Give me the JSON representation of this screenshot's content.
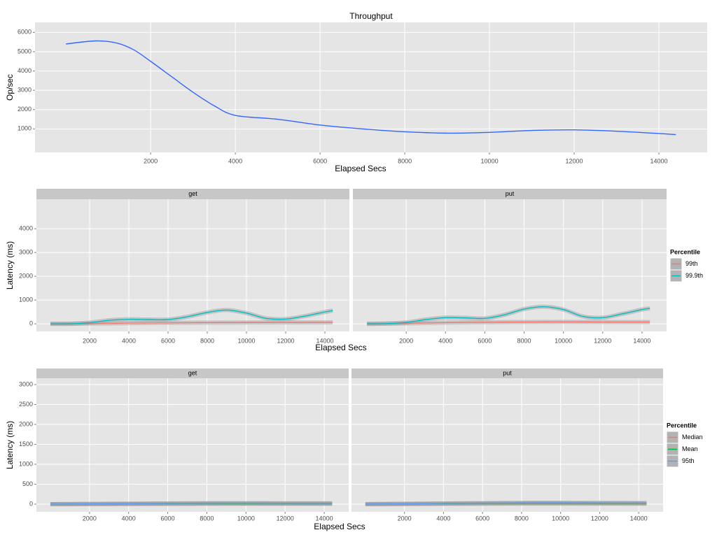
{
  "chart_data": [
    {
      "type": "line",
      "title": "Throughput",
      "x_label": "Elapsed Secs",
      "y_label": "Op/sec",
      "color": "#3366ff",
      "x": [
        0,
        700,
        1200,
        1600,
        2000,
        2500,
        3000,
        3500,
        4000,
        5000,
        6000,
        7000,
        8000,
        9000,
        10000,
        11000,
        12000,
        13000,
        14000,
        14400
      ],
      "values": [
        5400,
        5560,
        5450,
        5100,
        4500,
        3700,
        2900,
        2200,
        1700,
        1500,
        1200,
        1000,
        850,
        780,
        820,
        920,
        950,
        880,
        760,
        700
      ],
      "xlim": [
        -730,
        15140
      ],
      "ylim": [
        -220,
        6520
      ],
      "xticks": [
        2000,
        4000,
        6000,
        8000,
        10000,
        12000,
        14000
      ],
      "yticks": [
        1000,
        2000,
        3000,
        4000,
        5000,
        6000
      ],
      "grid": true
    },
    {
      "type": "line",
      "x_label": "Elapsed Secs",
      "y_label": "Latency (ms)",
      "legend_title": "Percentile",
      "legend": "right",
      "ribbon": true,
      "xlim": [
        -714,
        15250
      ],
      "ylim": [
        -320,
        5240
      ],
      "xticks": [
        2000,
        4000,
        6000,
        8000,
        10000,
        12000,
        14000
      ],
      "yticks": [
        0,
        1000,
        2000,
        3000,
        4000
      ],
      "grid": true,
      "x": [
        0,
        1000,
        2000,
        3000,
        4000,
        5000,
        6000,
        7000,
        8000,
        9000,
        10000,
        11000,
        12000,
        13000,
        14000,
        14400
      ],
      "panels": [
        {
          "name": "get",
          "series": [
            {
              "name": "99th",
              "color": "#f8766d",
              "values": [
                0,
                5,
                10,
                20,
                30,
                35,
                40,
                45,
                50,
                52,
                55,
                55,
                57,
                58,
                60,
                60
              ]
            },
            {
              "name": "99.9th",
              "color": "#00bfc4",
              "values": [
                0,
                0,
                50,
                150,
                190,
                180,
                180,
                300,
                480,
                580,
                450,
                230,
                200,
                330,
                500,
                560
              ]
            }
          ]
        },
        {
          "name": "put",
          "series": [
            {
              "name": "99th",
              "color": "#f8766d",
              "values": [
                0,
                10,
                20,
                35,
                50,
                60,
                65,
                70,
                75,
                78,
                80,
                78,
                76,
                75,
                75,
                75
              ]
            },
            {
              "name": "99.9th",
              "color": "#00bfc4",
              "values": [
                0,
                10,
                60,
                180,
                260,
                250,
                230,
                380,
                620,
                720,
                600,
                310,
                260,
                420,
                600,
                650
              ]
            }
          ]
        }
      ]
    },
    {
      "type": "line",
      "x_label": "Elapsed Secs",
      "y_label": "Latency (ms)",
      "legend_title": "Percentile",
      "legend": "right",
      "ribbon": true,
      "xlim": [
        -714,
        15250
      ],
      "ylim": [
        -193,
        3158
      ],
      "xticks": [
        2000,
        4000,
        6000,
        8000,
        10000,
        12000,
        14000
      ],
      "yticks": [
        0,
        500,
        1000,
        1500,
        2000,
        2500,
        3000
      ],
      "grid": true,
      "x": [
        0,
        1000,
        2000,
        3000,
        4000,
        5000,
        6000,
        7000,
        8000,
        9000,
        10000,
        11000,
        12000,
        13000,
        14000,
        14400
      ],
      "panels": [
        {
          "name": "get",
          "series": [
            {
              "name": "Median",
              "color": "#f8766d",
              "values": [
                0,
                1,
                2,
                3,
                4,
                5,
                6,
                7,
                8,
                8,
                8,
                8,
                8,
                8,
                8,
                8
              ]
            },
            {
              "name": "Mean",
              "color": "#00ba38",
              "values": [
                0,
                2,
                4,
                6,
                8,
                10,
                12,
                14,
                15,
                15,
                15,
                15,
                14,
                14,
                14,
                14
              ]
            },
            {
              "name": "95th",
              "color": "#619cff",
              "values": [
                0,
                3,
                6,
                9,
                12,
                15,
                18,
                21,
                24,
                25,
                25,
                24,
                23,
                22,
                22,
                22
              ]
            }
          ]
        },
        {
          "name": "put",
          "series": [
            {
              "name": "Median",
              "color": "#f8766d",
              "values": [
                0,
                2,
                4,
                6,
                8,
                10,
                12,
                13,
                14,
                14,
                14,
                14,
                13,
                13,
                13,
                13
              ]
            },
            {
              "name": "Mean",
              "color": "#00ba38",
              "values": [
                0,
                3,
                6,
                9,
                12,
                15,
                18,
                20,
                22,
                23,
                23,
                22,
                21,
                20,
                20,
                20
              ]
            },
            {
              "name": "95th",
              "color": "#619cff",
              "values": [
                0,
                4,
                8,
                13,
                18,
                22,
                26,
                30,
                33,
                35,
                35,
                33,
                31,
                30,
                29,
                29
              ]
            }
          ]
        }
      ]
    }
  ]
}
